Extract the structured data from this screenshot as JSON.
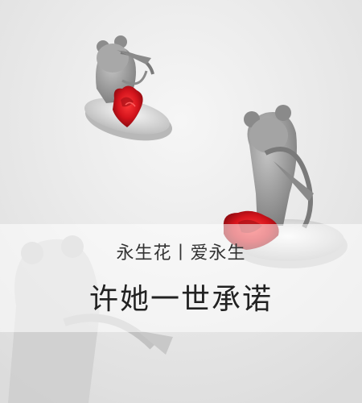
{
  "banner": {
    "subtitle": "永生花丨爱永生",
    "headline": "许她一世承诺"
  },
  "palette": {
    "background": "#ececec",
    "statue_gray": "#9a9a9a",
    "rose_red": "#d4141c"
  }
}
